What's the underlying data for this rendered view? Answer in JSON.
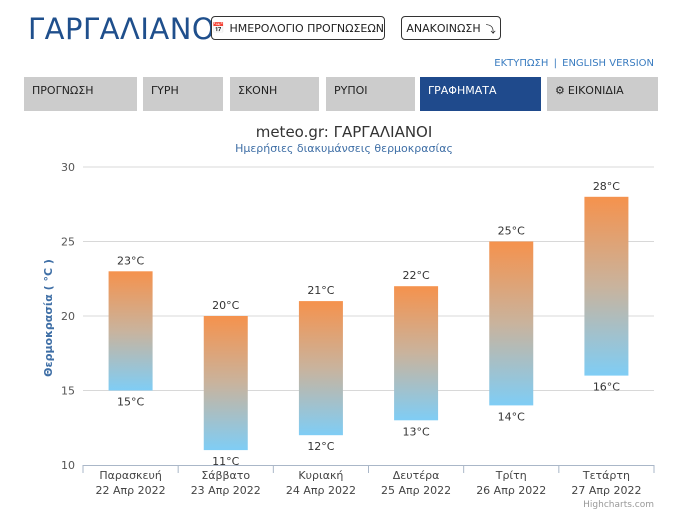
{
  "header": {
    "title": "ΓΑΡΓΑΛΙΑΝΟΙ",
    "calendar_button": "ΗΜΕΡΟΛΟΓΙΟ ΠΡΟΓΝΩΣΕΩΝ",
    "announcement_button": "ΑΝΑΚΟΙΝΩΣΗ",
    "print_link": "ΕΚΤΥΠΩΣΗ",
    "separator": "|",
    "english_link": "ENGLISH VERSION"
  },
  "tabs": [
    {
      "label": "ΠΡΟΓΝΩΣΗ",
      "active": false
    },
    {
      "label": "ΓΥΡΗ",
      "active": false
    },
    {
      "label": "ΣΚΟΝΗ",
      "active": false
    },
    {
      "label": "ΡΥΠΟΙ",
      "active": false
    },
    {
      "label": "ΓΡΑΦΗΜΑΤΑ",
      "active": true
    },
    {
      "label": "ΕΙΚΟΝΙΔΙΑ",
      "active": false
    }
  ],
  "icons": {
    "calendar": "calendar-icon",
    "announcement": "arrow-icon",
    "tab_icons": "gear-icon"
  },
  "colors": {
    "title": "#1f4f8c",
    "active_tab": "#1f4a8c",
    "bar_top": "#f5924d",
    "bar_bottom": "#7fcdf5"
  },
  "chart_data": {
    "type": "bar",
    "subtype": "columnrange",
    "title": "meteo.gr: ΓΑΡΓΑΛΙΑΝΟΙ",
    "subtitle": "Ημερήσιες διακυμάνσεις θερμοκρασίας",
    "ylabel": "Θερμοκρασία ( °C )",
    "xlabel": "",
    "ylim": [
      10,
      30
    ],
    "yticks": [
      10,
      15,
      20,
      25,
      30
    ],
    "grid": true,
    "unit": "°C",
    "categories": [
      {
        "day": "Παρασκευή",
        "date": "22 Απρ 2022"
      },
      {
        "day": "Σάββατο",
        "date": "23 Απρ 2022"
      },
      {
        "day": "Κυριακή",
        "date": "24 Απρ 2022"
      },
      {
        "day": "Δευτέρα",
        "date": "25 Απρ 2022"
      },
      {
        "day": "Τρίτη",
        "date": "26 Απρ 2022"
      },
      {
        "day": "Τετάρτη",
        "date": "27 Απρ 2022"
      }
    ],
    "low": [
      15,
      11,
      12,
      13,
      14,
      16
    ],
    "high": [
      23,
      20,
      21,
      22,
      25,
      28
    ],
    "credit": "Highcharts.com"
  }
}
